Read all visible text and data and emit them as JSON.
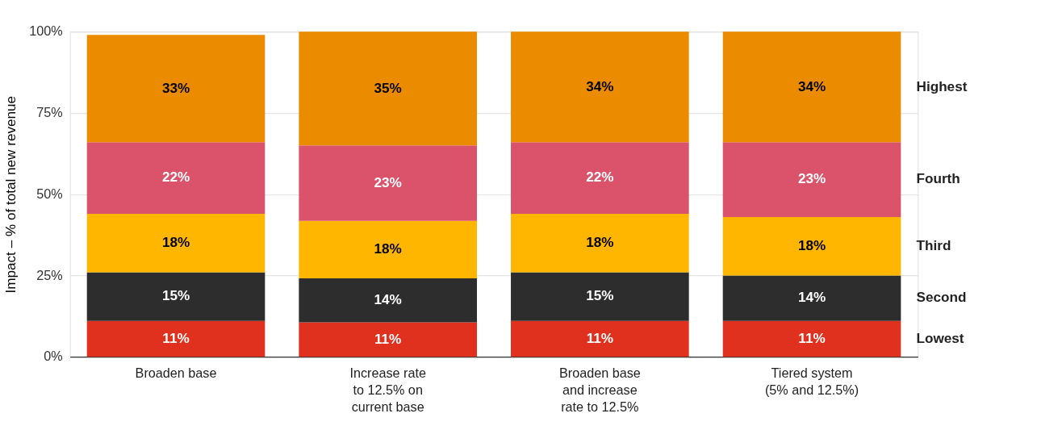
{
  "chart_data": {
    "type": "bar",
    "stacked": true,
    "ylabel": "Impact – % of total new revenue",
    "categories": [
      "Broaden base",
      "Increase rate\nto 12.5% on\ncurrent base",
      "Broaden base\nand increase\nrate to 12.5%",
      "Tiered system\n(5% and 12.5%)"
    ],
    "series": [
      {
        "name": "Lowest",
        "color": "#e0301e",
        "values": [
          11,
          10.6,
          11,
          11
        ],
        "value_labels": [
          "11%",
          "11%",
          "11%",
          "11%"
        ]
      },
      {
        "name": "Second",
        "color": "#2d2d2d",
        "values": [
          15,
          13.5,
          15,
          14
        ],
        "value_labels": [
          "15%",
          "14%",
          "15%",
          "14%"
        ]
      },
      {
        "name": "Third",
        "color": "#ffb600",
        "values": [
          18,
          17.7,
          18,
          18
        ],
        "value_labels": [
          "18%",
          "18%",
          "18%",
          "18%"
        ]
      },
      {
        "name": "Fourth",
        "color": "#db536a",
        "values": [
          22,
          23.2,
          22,
          23
        ],
        "value_labels": [
          "22%",
          "23%",
          "22%",
          "23%"
        ]
      },
      {
        "name": "Highest",
        "color": "#eb8c00",
        "values": [
          33,
          35.0,
          34,
          34
        ],
        "value_labels": [
          "33%",
          "35%",
          "34%",
          "34%"
        ]
      }
    ],
    "ylim": [
      0,
      100
    ],
    "yticks": [
      {
        "value": 0,
        "label": "0%"
      },
      {
        "value": 25,
        "label": "25%"
      },
      {
        "value": 50,
        "label": "50%"
      },
      {
        "value": 75,
        "label": "75%"
      },
      {
        "value": 100,
        "label": "100%"
      }
    ],
    "grid": "y",
    "legend": false
  }
}
